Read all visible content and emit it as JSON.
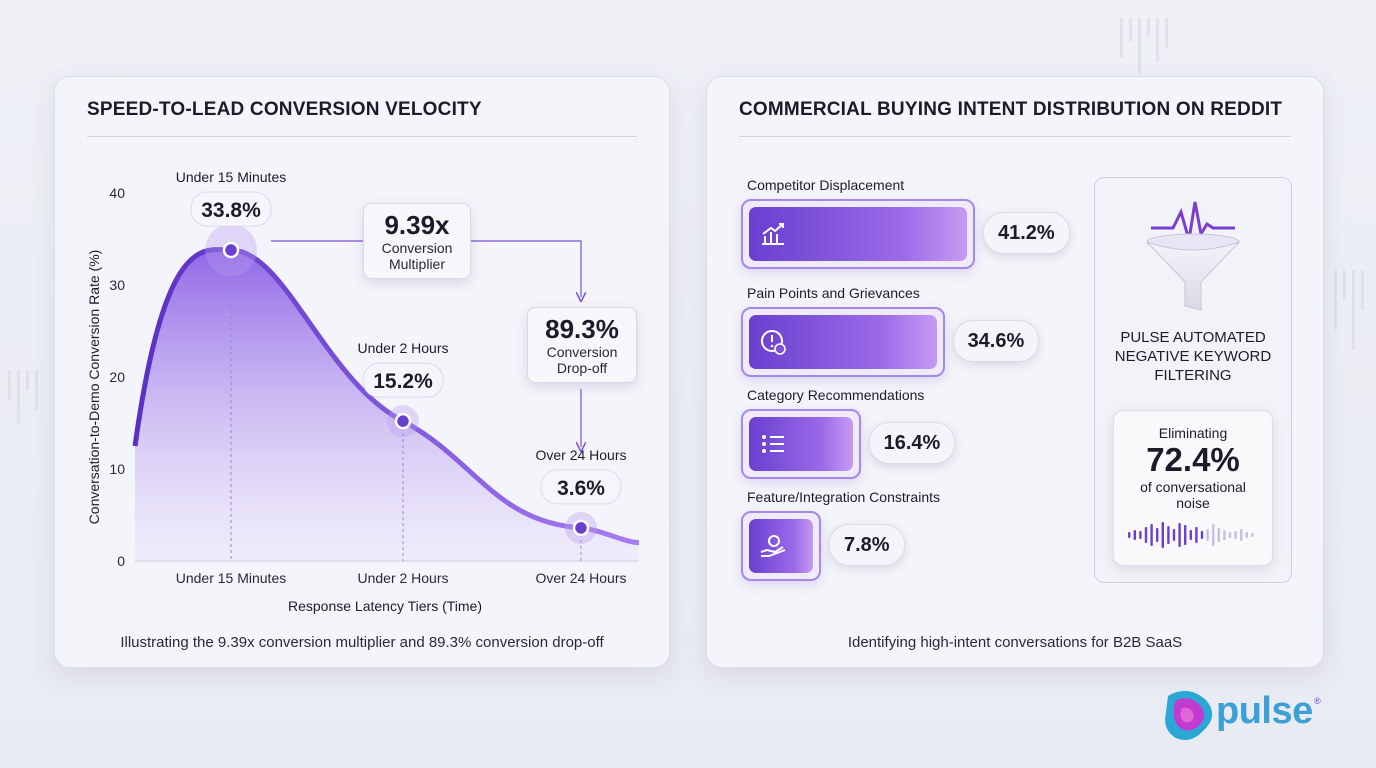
{
  "left_panel": {
    "title": "SPEED-TO-LEAD CONVERSION VELOCITY",
    "caption": "Illustrating the 9.39x conversion multiplier and 89.3% conversion drop-off",
    "multiplier_box": {
      "value": "9.39x",
      "line1": "Conversion",
      "line2": "Multiplier"
    },
    "dropoff_box": {
      "value": "89.3%",
      "line1": "Conversion",
      "line2": "Drop-off"
    }
  },
  "chart_data": {
    "type": "area",
    "title": "SPEED-TO-LEAD CONVERSION VELOCITY",
    "xlabel": "Response Latency Tiers (Time)",
    "ylabel": "Conversation-to-Demo Conversion Rate (%)",
    "ylim": [
      0,
      40
    ],
    "yticks": [
      0,
      10,
      20,
      30,
      40
    ],
    "categories": [
      "Under 15 Minutes",
      "Under 2 Hours",
      "Over 24 Hours"
    ],
    "values": [
      33.8,
      15.2,
      3.6
    ],
    "value_labels": [
      "33.8%",
      "15.2%",
      "3.6%"
    ],
    "grid": false,
    "legend": "none"
  },
  "right_panel": {
    "title": "COMMERCIAL BUYING INTENT DISTRIBUTION ON REDDIT",
    "caption": "Identifying high-intent conversations for B2B SaaS",
    "categories": [
      {
        "label": "Competitor Displacement",
        "value": 41.2,
        "pct": "41.2%",
        "icon": "trend-chart-icon"
      },
      {
        "label": "Pain Points and Grievances",
        "value": 34.6,
        "pct": "34.6%",
        "icon": "alert-clock-icon"
      },
      {
        "label": "Category Recommendations",
        "value": 16.4,
        "pct": "16.4%",
        "icon": "list-icon"
      },
      {
        "label": "Feature/Integration Constraints",
        "value": 7.8,
        "pct": "7.8%",
        "icon": "hand-gear-icon"
      }
    ],
    "filter": {
      "title_line1": "PULSE AUTOMATED",
      "title_line2": "NEGATIVE KEYWORD",
      "title_line3": "FILTERING",
      "elim_top": "Eliminating",
      "elim_value": "72.4%",
      "elim_bottom": "of conversational noise"
    }
  },
  "brand": {
    "name": "pulse",
    "reg": "®",
    "accent": "#7a3fd0",
    "text_color": "#3b9fd8"
  },
  "colors": {
    "primary": "#6a3fd0",
    "light": "#c59bf3"
  }
}
